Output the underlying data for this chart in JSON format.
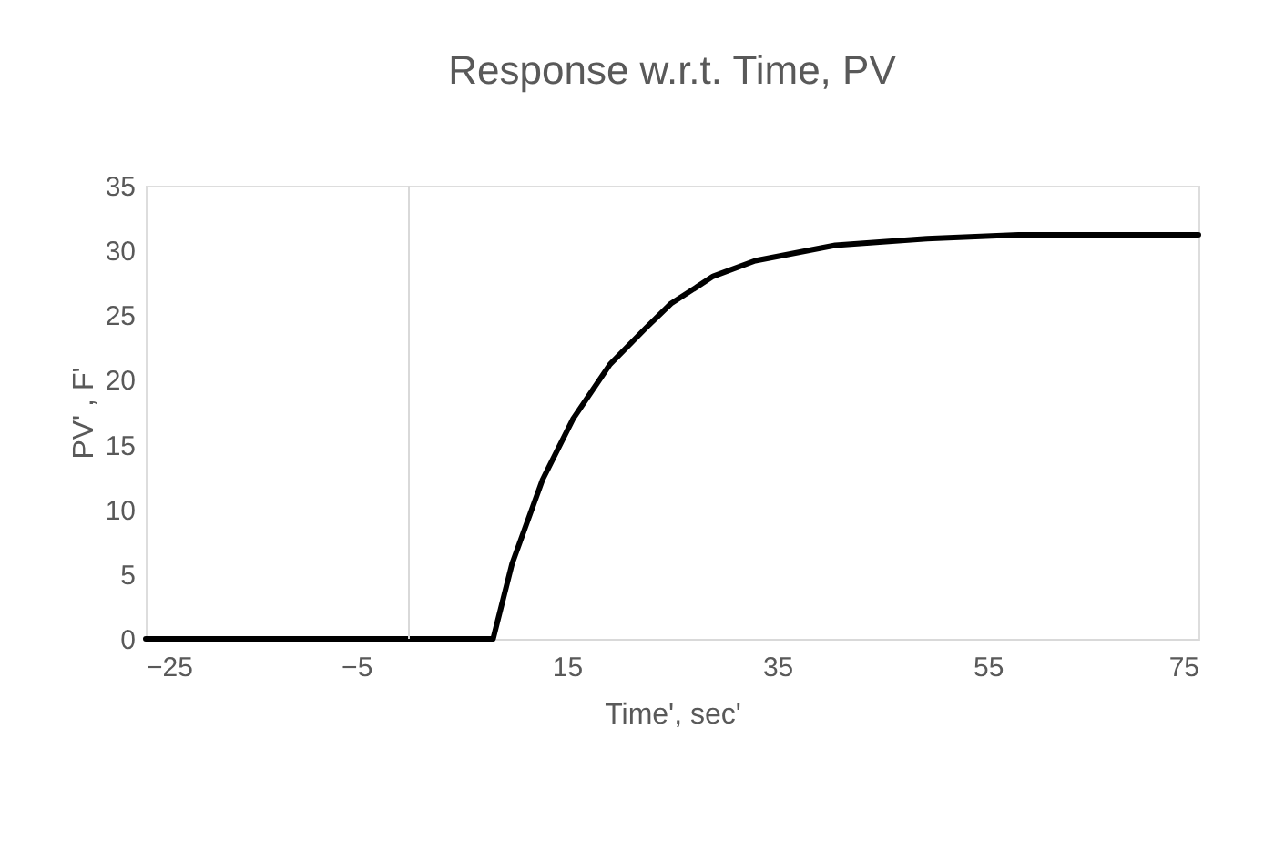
{
  "chart_data": {
    "type": "line",
    "title": "Response w.r.t. Time, PV",
    "xlabel": "Time', sec'",
    "ylabel": "PV' , F'",
    "series": [
      {
        "color": "#000000",
        "x": [
          -25,
          8,
          9.8,
          12.7,
          15.6,
          19.1,
          22.5,
          24.9,
          27.2,
          28.9,
          32.9,
          40.5,
          49.2,
          57.9,
          75
        ],
        "values": [
          0,
          0,
          5.8,
          12.3,
          17.0,
          21.2,
          24.0,
          25.9,
          27.1,
          28.0,
          29.2,
          30.4,
          30.9,
          31.2,
          31.2
        ]
      }
    ],
    "xlim": [
      -25,
      75
    ],
    "xticks": [
      -25,
      -5,
      15,
      35,
      55,
      75
    ],
    "ylim": [
      0,
      35
    ],
    "yticks": [
      0,
      5,
      10,
      15,
      20,
      25,
      30,
      35
    ],
    "ref_lines": [
      {
        "axis": "x",
        "value": 0,
        "color": "#d9d9d9"
      }
    ],
    "grid": false,
    "marker": "none",
    "line_style": "solid"
  }
}
